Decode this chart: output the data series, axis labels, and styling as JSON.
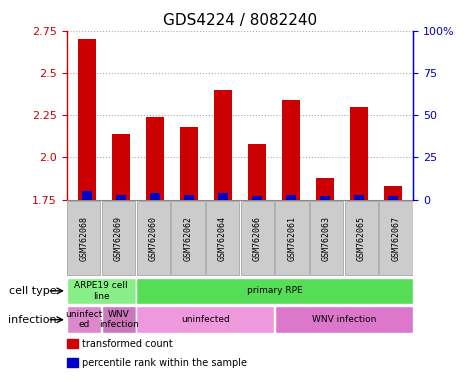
{
  "title": "GDS4224 / 8082240",
  "samples": [
    "GSM762068",
    "GSM762069",
    "GSM762060",
    "GSM762062",
    "GSM762064",
    "GSM762066",
    "GSM762061",
    "GSM762063",
    "GSM762065",
    "GSM762067"
  ],
  "transformed_count": [
    2.7,
    2.14,
    2.24,
    2.18,
    2.4,
    2.08,
    2.34,
    1.88,
    2.3,
    1.83
  ],
  "percentile_rank": [
    5,
    3,
    4,
    3,
    4,
    2,
    3,
    2,
    3,
    2
  ],
  "ymin": 1.75,
  "ymax": 2.75,
  "yticks": [
    1.75,
    2.0,
    2.25,
    2.5,
    2.75
  ],
  "right_yticks": [
    0,
    25,
    50,
    75,
    100
  ],
  "right_ytick_labels": [
    "0",
    "25",
    "50",
    "75",
    "100%"
  ],
  "bar_color": "#cc0000",
  "percentile_color": "#0000cc",
  "bg_color": "#ffffff",
  "cell_type_label": "cell type",
  "infection_label": "infection",
  "cell_type_groups": [
    {
      "label": "ARPE19 cell\nline",
      "start": 0,
      "end": 2,
      "color": "#88ee88"
    },
    {
      "label": "primary RPE",
      "start": 2,
      "end": 10,
      "color": "#55dd55"
    }
  ],
  "infection_groups": [
    {
      "label": "uninfect\ned",
      "start": 0,
      "end": 1,
      "color": "#dd88cc"
    },
    {
      "label": "WNV\ninfection",
      "start": 1,
      "end": 2,
      "color": "#cc77bb"
    },
    {
      "label": "uninfected",
      "start": 2,
      "end": 6,
      "color": "#ee99dd"
    },
    {
      "label": "WNV infection",
      "start": 6,
      "end": 10,
      "color": "#dd77cc"
    }
  ],
  "legend_items": [
    {
      "label": "transformed count",
      "color": "#cc0000"
    },
    {
      "label": "percentile rank within the sample",
      "color": "#0000cc"
    }
  ],
  "title_fontsize": 11,
  "tick_fontsize": 8,
  "label_fontsize": 7,
  "bar_width": 0.55,
  "sample_bg_color": "#cccccc",
  "sample_border_color": "#999999"
}
